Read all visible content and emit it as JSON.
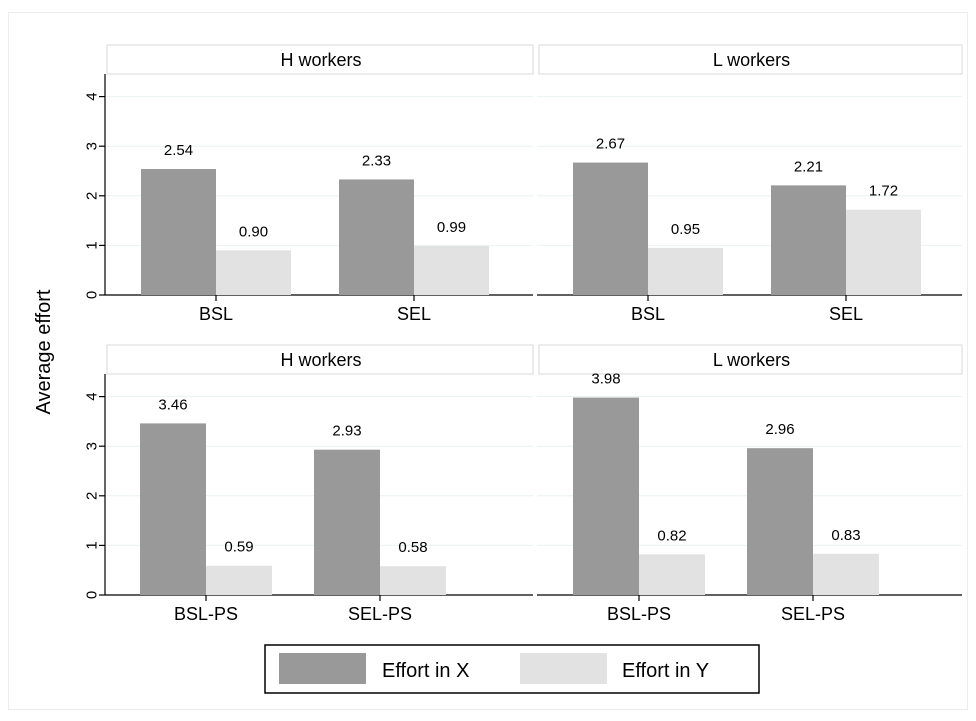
{
  "figure": {
    "ylabel": "Average effort"
  },
  "legend": {
    "entries": [
      "Effort in X",
      "Effort in Y"
    ]
  },
  "chart_data": [
    {
      "type": "bar",
      "title": "H workers",
      "categories": [
        "BSL",
        "SEL"
      ],
      "series": [
        {
          "name": "Effort in X",
          "values": [
            2.54,
            2.33
          ],
          "labels": [
            "2.54",
            "2.33"
          ],
          "color": "#999999"
        },
        {
          "name": "Effort in Y",
          "values": [
            0.9,
            0.99
          ],
          "labels": [
            "0.90",
            "0.99"
          ],
          "color": "#e2e2e2"
        }
      ],
      "ylim": [
        0,
        4
      ],
      "yticks": [
        "0",
        "1",
        "2",
        "3",
        "4"
      ],
      "ylabel": "Average effort",
      "grid": true
    },
    {
      "type": "bar",
      "title": "L workers",
      "categories": [
        "BSL",
        "SEL"
      ],
      "series": [
        {
          "name": "Effort in X",
          "values": [
            2.67,
            2.21
          ],
          "labels": [
            "2.67",
            "2.21"
          ],
          "color": "#999999"
        },
        {
          "name": "Effort in Y",
          "values": [
            0.95,
            1.72
          ],
          "labels": [
            "0.95",
            "1.72"
          ],
          "color": "#e2e2e2"
        }
      ],
      "ylim": [
        0,
        4
      ],
      "grid": true
    },
    {
      "type": "bar",
      "title": "H workers",
      "categories": [
        "BSL-PS",
        "SEL-PS"
      ],
      "series": [
        {
          "name": "Effort in X",
          "values": [
            3.46,
            2.93
          ],
          "labels": [
            "3.46",
            "2.93"
          ],
          "color": "#999999"
        },
        {
          "name": "Effort in Y",
          "values": [
            0.59,
            0.58
          ],
          "labels": [
            "0.59",
            "0.58"
          ],
          "color": "#e2e2e2"
        }
      ],
      "ylim": [
        0,
        4
      ],
      "yticks": [
        "0",
        "1",
        "2",
        "3",
        "4"
      ],
      "ylabel": "Average effort",
      "grid": true
    },
    {
      "type": "bar",
      "title": "L workers",
      "categories": [
        "BSL-PS",
        "SEL-PS"
      ],
      "series": [
        {
          "name": "Effort in X",
          "values": [
            3.98,
            2.96
          ],
          "labels": [
            "3.98",
            "2.96"
          ],
          "color": "#999999"
        },
        {
          "name": "Effort in Y",
          "values": [
            0.82,
            0.83
          ],
          "labels": [
            "0.82",
            "0.83"
          ],
          "color": "#e2e2e2"
        }
      ],
      "ylim": [
        0,
        4
      ],
      "grid": true
    }
  ],
  "colors": {
    "effort_x": "#999999",
    "effort_y": "#e2e2e2",
    "grid": "#eaf2f3",
    "axis": "#000000",
    "border": "#d9d9d9"
  }
}
